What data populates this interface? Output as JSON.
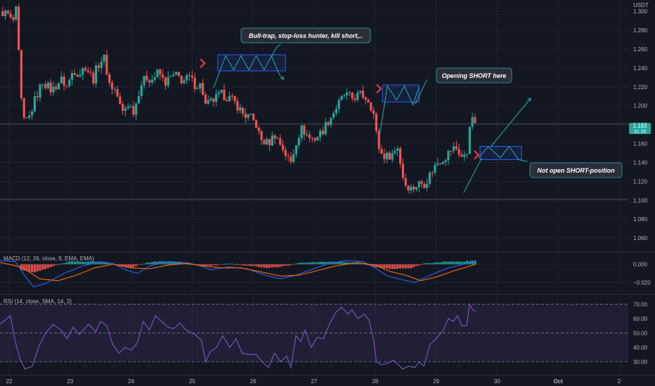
{
  "colors": {
    "background": "#131722",
    "grid": "#1e2230",
    "bull": "#26a69a",
    "bear": "#ef5350",
    "axis_text": "#b2b5be",
    "annotation_line": "#2ea8b0",
    "box": "#2962ff",
    "macd_line": "#2962ff",
    "signal_line": "#ff6d00",
    "rsi_line": "#7e57c2",
    "rsi_band": "#7e57c2",
    "callout_bg": "#2a2e39",
    "marker": "#f23645"
  },
  "chart_data": [
    {
      "type": "candlestick",
      "currency_label": "USDT",
      "y_ticks": [
        1.3,
        1.28,
        1.26,
        1.24,
        1.22,
        1.2,
        1.18,
        1.16,
        1.14,
        1.12,
        1.1,
        1.08,
        1.06
      ],
      "y_tick_labels": [
        "1.300",
        "1.280",
        "1.260",
        "1.240",
        "1.220",
        "1.200",
        "1.180",
        "1.160",
        "1.140",
        "1.120",
        "1.100",
        "1.080",
        "1.060"
      ],
      "ylim": [
        1.046,
        1.312
      ],
      "x_tick_labels": [
        "22",
        "23",
        "24",
        "25",
        "26",
        "27",
        "28",
        "29",
        "30",
        "Oct",
        "2"
      ],
      "x_tick_days": [
        22,
        23,
        24,
        25,
        26,
        27,
        28,
        29,
        30,
        31,
        32
      ],
      "xlim_days": [
        21.85,
        32.15
      ],
      "last_price_label": "1.183",
      "countdown_label": "41:39",
      "last_price": 1.183,
      "horizontal_lines": [
        1.181,
        1.101
      ],
      "price_path": [
        [
          21.85,
          1.3
        ],
        [
          22.0,
          1.296
        ],
        [
          22.05,
          1.286
        ],
        [
          22.12,
          1.302
        ],
        [
          22.15,
          1.262
        ],
        [
          22.22,
          1.182
        ],
        [
          22.32,
          1.186
        ],
        [
          22.42,
          1.206
        ],
        [
          22.55,
          1.226
        ],
        [
          22.7,
          1.216
        ],
        [
          22.85,
          1.228
        ],
        [
          22.95,
          1.22
        ],
        [
          23.05,
          1.238
        ],
        [
          23.15,
          1.234
        ],
        [
          23.25,
          1.242
        ],
        [
          23.38,
          1.228
        ],
        [
          23.45,
          1.243
        ],
        [
          23.55,
          1.252
        ],
        [
          23.65,
          1.222
        ],
        [
          23.75,
          1.216
        ],
        [
          23.85,
          1.192
        ],
        [
          23.95,
          1.202
        ],
        [
          24.05,
          1.194
        ],
        [
          24.15,
          1.222
        ],
        [
          24.25,
          1.23
        ],
        [
          24.35,
          1.228
        ],
        [
          24.45,
          1.236
        ],
        [
          24.55,
          1.224
        ],
        [
          24.65,
          1.23
        ],
        [
          24.75,
          1.232
        ],
        [
          24.85,
          1.226
        ],
        [
          24.95,
          1.23
        ],
        [
          25.05,
          1.222
        ],
        [
          25.15,
          1.222
        ],
        [
          25.22,
          1.2
        ],
        [
          25.35,
          1.206
        ],
        [
          25.48,
          1.212
        ],
        [
          25.62,
          1.208
        ],
        [
          25.72,
          1.202
        ],
        [
          25.85,
          1.19
        ],
        [
          25.95,
          1.188
        ],
        [
          26.05,
          1.18
        ],
        [
          26.12,
          1.164
        ],
        [
          26.25,
          1.16
        ],
        [
          26.35,
          1.17
        ],
        [
          26.48,
          1.156
        ],
        [
          26.55,
          1.146
        ],
        [
          26.62,
          1.14
        ],
        [
          26.72,
          1.166
        ],
        [
          26.8,
          1.176
        ],
        [
          26.92,
          1.166
        ],
        [
          27.0,
          1.165
        ],
        [
          27.12,
          1.172
        ],
        [
          27.25,
          1.186
        ],
        [
          27.38,
          1.2
        ],
        [
          27.5,
          1.212
        ],
        [
          27.62,
          1.208
        ],
        [
          27.75,
          1.212
        ],
        [
          27.82,
          1.21
        ],
        [
          27.9,
          1.206
        ],
        [
          27.98,
          1.19
        ],
        [
          28.02,
          1.17
        ],
        [
          28.08,
          1.15
        ],
        [
          28.18,
          1.146
        ],
        [
          28.3,
          1.15
        ],
        [
          28.38,
          1.158
        ],
        [
          28.42,
          1.136
        ],
        [
          28.48,
          1.118
        ],
        [
          28.6,
          1.112
        ],
        [
          28.72,
          1.118
        ],
        [
          28.82,
          1.118
        ],
        [
          28.92,
          1.13
        ],
        [
          29.02,
          1.14
        ],
        [
          29.15,
          1.146
        ],
        [
          29.25,
          1.154
        ],
        [
          29.32,
          1.156
        ],
        [
          29.42,
          1.146
        ],
        [
          29.5,
          1.146
        ],
        [
          29.55,
          1.182
        ],
        [
          29.6,
          1.184
        ],
        [
          29.65,
          1.183
        ]
      ],
      "annotations": [
        "Bull-trap, stop-loss hunter, kill short,..",
        "Opening SHORT here",
        "Not open SHORT-position"
      ]
    },
    {
      "type": "histogram_line",
      "indicator_label": "MACD (12, 26, close, 9, EMA, EMA)",
      "y_ticks": [
        0.0,
        -0.02
      ],
      "y_tick_labels": [
        "0.000",
        "−0.020"
      ],
      "ylim": [
        -0.032,
        0.012
      ],
      "macd_path": [
        [
          21.85,
          0.004
        ],
        [
          22.1,
          0.003
        ],
        [
          22.25,
          -0.012
        ],
        [
          22.4,
          -0.025
        ],
        [
          22.6,
          -0.021
        ],
        [
          22.9,
          -0.01
        ],
        [
          23.2,
          -0.002
        ],
        [
          23.5,
          0.003
        ],
        [
          23.7,
          0.001
        ],
        [
          23.9,
          -0.006
        ],
        [
          24.1,
          -0.01
        ],
        [
          24.3,
          -0.002
        ],
        [
          24.6,
          0.003
        ],
        [
          24.9,
          0.002
        ],
        [
          25.1,
          -0.001
        ],
        [
          25.3,
          -0.006
        ],
        [
          25.6,
          -0.003
        ],
        [
          25.9,
          -0.005
        ],
        [
          26.2,
          -0.012
        ],
        [
          26.45,
          -0.016
        ],
        [
          26.7,
          -0.012
        ],
        [
          26.95,
          -0.006
        ],
        [
          27.2,
          0.0
        ],
        [
          27.5,
          0.004
        ],
        [
          27.8,
          0.003
        ],
        [
          28.0,
          -0.004
        ],
        [
          28.2,
          -0.013
        ],
        [
          28.45,
          -0.017
        ],
        [
          28.65,
          -0.02
        ],
        [
          28.9,
          -0.012
        ],
        [
          29.2,
          -0.004
        ],
        [
          29.45,
          0.0
        ],
        [
          29.65,
          0.004
        ]
      ],
      "signal_path": [
        [
          21.85,
          0.002
        ],
        [
          22.2,
          -0.003
        ],
        [
          22.5,
          -0.016
        ],
        [
          22.8,
          -0.018
        ],
        [
          23.1,
          -0.012
        ],
        [
          23.4,
          -0.004
        ],
        [
          23.7,
          0.0
        ],
        [
          24.0,
          -0.004
        ],
        [
          24.3,
          -0.005
        ],
        [
          24.6,
          -0.001
        ],
        [
          24.9,
          0.001
        ],
        [
          25.2,
          -0.002
        ],
        [
          25.5,
          -0.004
        ],
        [
          25.8,
          -0.004
        ],
        [
          26.1,
          -0.008
        ],
        [
          26.45,
          -0.013
        ],
        [
          26.75,
          -0.012
        ],
        [
          27.05,
          -0.007
        ],
        [
          27.35,
          -0.002
        ],
        [
          27.7,
          0.002
        ],
        [
          28.0,
          -0.001
        ],
        [
          28.25,
          -0.008
        ],
        [
          28.5,
          -0.012
        ],
        [
          28.75,
          -0.018
        ],
        [
          29.0,
          -0.014
        ],
        [
          29.3,
          -0.007
        ],
        [
          29.65,
          0.0
        ]
      ],
      "histogram": [
        [
          22.2,
          -0.006
        ],
        [
          22.4,
          -0.009
        ],
        [
          22.6,
          -0.005
        ],
        [
          22.8,
          0.0
        ],
        [
          23.0,
          0.003
        ],
        [
          23.2,
          0.003
        ],
        [
          23.4,
          0.003
        ],
        [
          23.6,
          0.002
        ],
        [
          23.8,
          -0.002
        ],
        [
          24.0,
          -0.004
        ],
        [
          24.2,
          0.001
        ],
        [
          24.4,
          0.003
        ],
        [
          24.6,
          0.003
        ],
        [
          24.8,
          0.002
        ],
        [
          25.0,
          0.0
        ],
        [
          25.2,
          -0.002
        ],
        [
          25.4,
          -0.001
        ],
        [
          25.6,
          0.001
        ],
        [
          25.8,
          -0.001
        ],
        [
          26.0,
          -0.002
        ],
        [
          26.2,
          -0.004
        ],
        [
          26.4,
          -0.003
        ],
        [
          26.6,
          -0.001
        ],
        [
          26.8,
          0.002
        ],
        [
          27.0,
          0.002
        ],
        [
          27.2,
          0.003
        ],
        [
          27.4,
          0.003
        ],
        [
          27.6,
          0.002
        ],
        [
          27.8,
          0.001
        ],
        [
          28.0,
          -0.003
        ],
        [
          28.2,
          -0.005
        ],
        [
          28.4,
          -0.005
        ],
        [
          28.6,
          -0.004
        ],
        [
          28.8,
          0.001
        ],
        [
          29.0,
          0.002
        ],
        [
          29.2,
          0.003
        ],
        [
          29.4,
          0.003
        ],
        [
          29.6,
          0.004
        ]
      ]
    },
    {
      "type": "line",
      "indicator_label": "RSI (14, close, SMA, 14, 2)",
      "y_ticks": [
        70,
        60,
        50,
        40,
        30
      ],
      "y_tick_labels": [
        "70.00",
        "60.00",
        "50.00",
        "40.00",
        "30.00"
      ],
      "ylim": [
        21,
        76
      ],
      "band": [
        30,
        70
      ],
      "middle": 50,
      "rsi_path": [
        [
          21.85,
          56
        ],
        [
          22.02,
          62
        ],
        [
          22.1,
          44
        ],
        [
          22.18,
          32
        ],
        [
          22.26,
          25
        ],
        [
          22.38,
          27
        ],
        [
          22.5,
          42
        ],
        [
          22.6,
          50
        ],
        [
          22.72,
          56
        ],
        [
          22.85,
          52
        ],
        [
          22.95,
          46
        ],
        [
          23.05,
          54
        ],
        [
          23.15,
          49
        ],
        [
          23.3,
          56
        ],
        [
          23.42,
          51
        ],
        [
          23.5,
          58
        ],
        [
          23.6,
          55
        ],
        [
          23.7,
          42
        ],
        [
          23.8,
          36
        ],
        [
          23.9,
          40
        ],
        [
          24.0,
          38
        ],
        [
          24.1,
          43
        ],
        [
          24.2,
          58
        ],
        [
          24.3,
          52
        ],
        [
          24.4,
          62
        ],
        [
          24.5,
          58
        ],
        [
          24.6,
          54
        ],
        [
          24.7,
          53
        ],
        [
          24.8,
          57
        ],
        [
          24.9,
          52
        ],
        [
          25.05,
          49
        ],
        [
          25.15,
          45
        ],
        [
          25.22,
          30
        ],
        [
          25.3,
          37
        ],
        [
          25.4,
          40
        ],
        [
          25.5,
          48
        ],
        [
          25.62,
          40
        ],
        [
          25.72,
          46
        ],
        [
          25.82,
          36
        ],
        [
          25.95,
          35
        ],
        [
          26.05,
          35
        ],
        [
          26.15,
          30
        ],
        [
          26.25,
          26
        ],
        [
          26.35,
          36
        ],
        [
          26.45,
          30
        ],
        [
          26.55,
          34
        ],
        [
          26.62,
          26
        ],
        [
          26.7,
          48
        ],
        [
          26.78,
          44
        ],
        [
          26.85,
          52
        ],
        [
          26.95,
          40
        ],
        [
          27.05,
          47
        ],
        [
          27.15,
          46
        ],
        [
          27.25,
          56
        ],
        [
          27.35,
          64
        ],
        [
          27.45,
          68
        ],
        [
          27.55,
          63
        ],
        [
          27.62,
          66
        ],
        [
          27.72,
          60
        ],
        [
          27.82,
          63
        ],
        [
          27.9,
          59
        ],
        [
          27.98,
          44
        ],
        [
          28.02,
          30
        ],
        [
          28.1,
          28
        ],
        [
          28.2,
          29
        ],
        [
          28.3,
          31
        ],
        [
          28.38,
          28
        ],
        [
          28.45,
          25
        ],
        [
          28.55,
          27
        ],
        [
          28.65,
          26
        ],
        [
          28.72,
          30
        ],
        [
          28.8,
          27
        ],
        [
          28.9,
          42
        ],
        [
          29.0,
          46
        ],
        [
          29.12,
          52
        ],
        [
          29.2,
          60
        ],
        [
          29.28,
          58
        ],
        [
          29.35,
          62
        ],
        [
          29.42,
          55
        ],
        [
          29.5,
          55
        ],
        [
          29.55,
          70
        ],
        [
          29.6,
          66
        ],
        [
          29.65,
          65
        ]
      ]
    }
  ]
}
